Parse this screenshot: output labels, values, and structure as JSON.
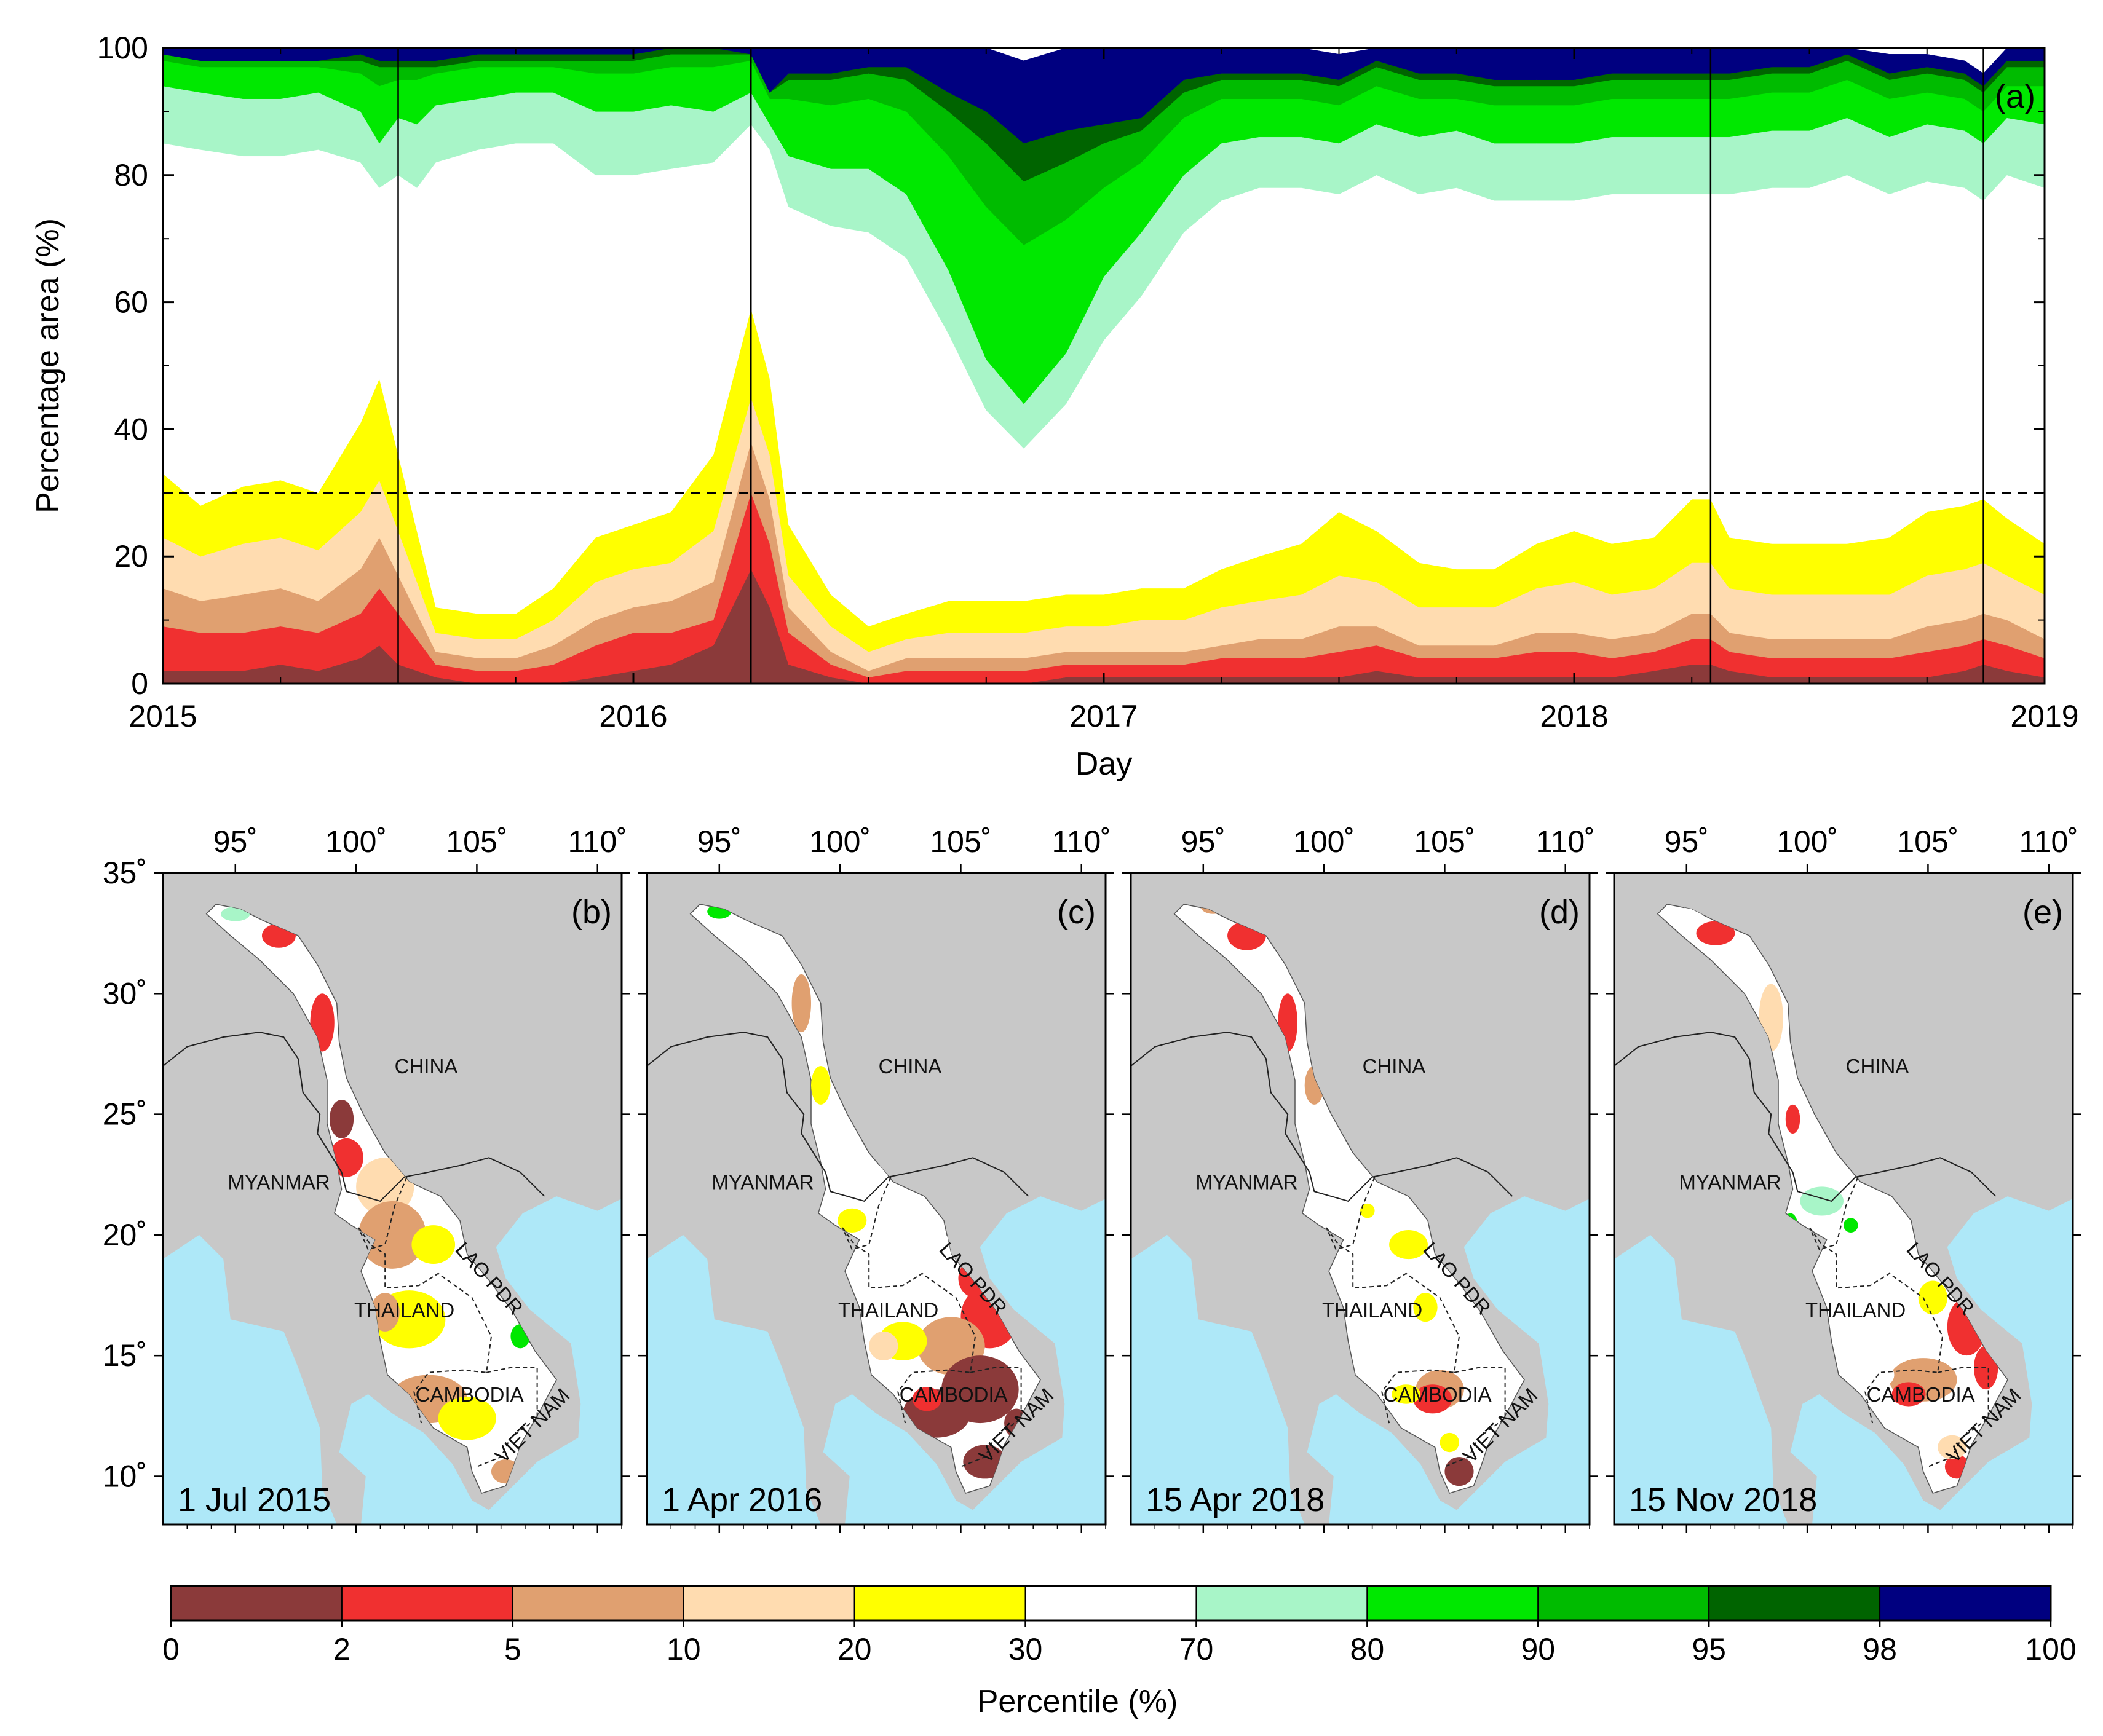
{
  "chart_data": [
    {
      "type": "area",
      "panel": "(a)",
      "stacked": true,
      "title": "",
      "xlabel": "Day",
      "ylabel": "Percentage area (%)",
      "xlim": [
        2015,
        2019
      ],
      "ylim": [
        0,
        100
      ],
      "xticks": [
        "2015",
        "2016",
        "2017",
        "2018",
        "2019"
      ],
      "yticks": [
        "0",
        "20",
        "40",
        "60",
        "80",
        "100"
      ],
      "reference_line": {
        "y": 30,
        "style": "dashed"
      },
      "event_lines": [
        2015.5,
        2016.25,
        2018.29,
        2018.87
      ],
      "x": [
        2015.0,
        2015.08,
        2015.17,
        2015.25,
        2015.33,
        2015.42,
        2015.46,
        2015.5,
        2015.54,
        2015.58,
        2015.67,
        2015.75,
        2015.83,
        2015.92,
        2016.0,
        2016.08,
        2016.17,
        2016.25,
        2016.29,
        2016.33,
        2016.42,
        2016.5,
        2016.58,
        2016.67,
        2016.75,
        2016.83,
        2016.92,
        2017.0,
        2017.08,
        2017.17,
        2017.25,
        2017.33,
        2017.42,
        2017.5,
        2017.58,
        2017.67,
        2017.75,
        2017.83,
        2017.92,
        2018.0,
        2018.08,
        2018.17,
        2018.25,
        2018.29,
        2018.33,
        2018.42,
        2018.5,
        2018.58,
        2018.67,
        2018.75,
        2018.83,
        2018.87,
        2018.92,
        2019.0
      ],
      "series": [
        {
          "name": "0-2",
          "color": "#8B3A3A",
          "values": [
            2,
            2,
            2,
            3,
            2,
            4,
            6,
            3,
            2,
            1,
            0,
            0,
            0,
            1,
            2,
            3,
            6,
            18,
            12,
            3,
            1,
            0,
            0,
            0,
            0,
            0,
            1,
            1,
            1,
            1,
            1,
            1,
            1,
            1,
            2,
            1,
            1,
            1,
            1,
            1,
            1,
            2,
            3,
            3,
            2,
            1,
            1,
            1,
            1,
            1,
            2,
            3,
            2,
            1
          ]
        },
        {
          "name": "2-5",
          "color": "#F03030",
          "values": [
            7,
            6,
            6,
            6,
            6,
            7,
            9,
            8,
            5,
            2,
            2,
            2,
            3,
            5,
            6,
            5,
            4,
            12,
            10,
            5,
            2,
            1,
            2,
            2,
            2,
            2,
            2,
            2,
            2,
            2,
            3,
            3,
            3,
            4,
            4,
            3,
            3,
            3,
            4,
            4,
            3,
            3,
            4,
            4,
            3,
            3,
            3,
            3,
            3,
            4,
            4,
            4,
            4,
            3
          ]
        },
        {
          "name": "5-10",
          "color": "#E0A070",
          "values": [
            6,
            5,
            6,
            6,
            5,
            7,
            8,
            6,
            4,
            2,
            2,
            2,
            3,
            4,
            4,
            5,
            6,
            8,
            7,
            4,
            2,
            1,
            2,
            2,
            2,
            2,
            2,
            2,
            2,
            2,
            2,
            3,
            3,
            4,
            3,
            2,
            2,
            2,
            3,
            3,
            3,
            3,
            4,
            4,
            3,
            3,
            3,
            3,
            3,
            4,
            4,
            4,
            4,
            3
          ]
        },
        {
          "name": "10-20",
          "color": "#FFDCB0",
          "values": [
            8,
            7,
            8,
            8,
            8,
            9,
            9,
            7,
            5,
            3,
            3,
            3,
            4,
            6,
            6,
            6,
            8,
            7,
            7,
            5,
            4,
            3,
            3,
            4,
            4,
            4,
            4,
            4,
            5,
            5,
            6,
            6,
            7,
            8,
            7,
            6,
            6,
            6,
            7,
            8,
            7,
            7,
            8,
            8,
            7,
            7,
            7,
            7,
            7,
            8,
            8,
            8,
            7,
            7
          ]
        },
        {
          "name": "20-30",
          "color": "#FFFF00",
          "values": [
            10,
            8,
            9,
            9,
            9,
            14,
            16,
            12,
            8,
            4,
            4,
            4,
            5,
            7,
            7,
            8,
            12,
            14,
            12,
            8,
            5,
            4,
            4,
            5,
            5,
            5,
            5,
            5,
            5,
            5,
            6,
            7,
            8,
            10,
            8,
            7,
            6,
            6,
            7,
            8,
            8,
            8,
            10,
            10,
            8,
            8,
            8,
            8,
            9,
            10,
            10,
            10,
            9,
            8
          ]
        },
        {
          "name": "30-70",
          "color": "#FFFFFF",
          "values": [
            52,
            56,
            52,
            51,
            54,
            41,
            30,
            44,
            54,
            70,
            73,
            74,
            70,
            57,
            55,
            54,
            46,
            29,
            36,
            50,
            58,
            62,
            56,
            42,
            30,
            24,
            30,
            40,
            46,
            56,
            58,
            58,
            56,
            50,
            56,
            58,
            60,
            58,
            54,
            52,
            55,
            54,
            48,
            48,
            54,
            56,
            56,
            58,
            54,
            52,
            50,
            47,
            54,
            56
          ]
        },
        {
          "name": "70-80",
          "color": "#A8F5C8",
          "values": [
            9,
            9,
            9,
            9,
            9,
            8,
            7,
            9,
            10,
            9,
            8,
            8,
            8,
            10,
            10,
            10,
            8,
            5,
            4,
            8,
            9,
            10,
            10,
            10,
            8,
            7,
            8,
            10,
            10,
            9,
            9,
            8,
            8,
            8,
            8,
            9,
            9,
            9,
            9,
            9,
            9,
            9,
            9,
            9,
            9,
            9,
            9,
            9,
            9,
            9,
            9,
            9,
            9,
            10
          ]
        },
        {
          "name": "80-90",
          "color": "#00E800",
          "values": [
            4,
            4,
            5,
            5,
            4,
            6,
            9,
            6,
            7,
            5,
            5,
            4,
            4,
            6,
            6,
            6,
            7,
            5,
            4,
            9,
            10,
            11,
            13,
            18,
            24,
            25,
            21,
            14,
            11,
            9,
            7,
            6,
            6,
            6,
            6,
            6,
            5,
            6,
            6,
            6,
            6,
            6,
            6,
            6,
            6,
            6,
            6,
            6,
            6,
            5,
            5,
            5,
            5,
            6
          ]
        },
        {
          "name": "90-95",
          "color": "#00BB00",
          "values": [
            1,
            1,
            1,
            1,
            1,
            2,
            3,
            2,
            2,
            1,
            1,
            1,
            1,
            2,
            2,
            2,
            2,
            1,
            1,
            3,
            4,
            4,
            5,
            7,
            10,
            10,
            9,
            7,
            5,
            4,
            3,
            3,
            3,
            3,
            3,
            3,
            3,
            3,
            3,
            3,
            3,
            3,
            3,
            3,
            3,
            3,
            3,
            3,
            3,
            3,
            3,
            3,
            3,
            3
          ]
        },
        {
          "name": "95-98",
          "color": "#006400",
          "values": [
            0,
            0,
            0,
            0,
            0,
            1,
            1,
            1,
            1,
            1,
            1,
            1,
            1,
            1,
            1,
            1,
            1,
            0,
            0,
            1,
            1,
            1,
            2,
            3,
            5,
            6,
            5,
            3,
            2,
            2,
            1,
            1,
            1,
            1,
            1,
            1,
            1,
            1,
            1,
            1,
            1,
            1,
            1,
            1,
            1,
            1,
            1,
            1,
            1,
            1,
            1,
            1,
            1,
            1
          ]
        },
        {
          "name": "98-100",
          "color": "#000080",
          "values": [
            1,
            2,
            2,
            2,
            2,
            1,
            2,
            2,
            2,
            2,
            2,
            2,
            1,
            1,
            1,
            1,
            0,
            1,
            7,
            4,
            4,
            3,
            3,
            7,
            10,
            13,
            13,
            12,
            11,
            7,
            4,
            4,
            4,
            4,
            2,
            4,
            4,
            5,
            5,
            5,
            4,
            4,
            4,
            4,
            4,
            3,
            3,
            2,
            3,
            2,
            2,
            2,
            2,
            2
          ]
        }
      ]
    },
    {
      "type": "heatmap",
      "maps": [
        {
          "panel": "(b)",
          "date": "1 Jul 2015"
        },
        {
          "panel": "(c)",
          "date": "1 Apr 2016"
        },
        {
          "panel": "(d)",
          "date": "15 Apr 2018"
        },
        {
          "panel": "(e)",
          "date": "15 Nov 2018"
        }
      ],
      "lon_ticks": [
        "95˚",
        "100˚",
        "105˚",
        "110˚"
      ],
      "lat_ticks": [
        "35˚",
        "30˚",
        "25˚",
        "20˚",
        "15˚",
        "10˚"
      ],
      "lon_range": [
        92,
        111
      ],
      "lat_range": [
        8,
        35
      ],
      "country_labels": [
        "CHINA",
        "MYANMAR",
        "LAO PDR",
        "THAILAND",
        "CAMBODIA",
        "VIET NAM"
      ]
    },
    {
      "type": "colorbar",
      "xlabel": "Percentile (%)",
      "boundaries": [
        "0",
        "2",
        "5",
        "10",
        "20",
        "30",
        "70",
        "80",
        "90",
        "95",
        "98",
        "100"
      ],
      "colors": [
        "#8B3A3A",
        "#F03030",
        "#E0A070",
        "#FFDCB0",
        "#FFFF00",
        "#FFFFFF",
        "#A8F5C8",
        "#00E800",
        "#00BB00",
        "#006400",
        "#000080"
      ]
    }
  ]
}
